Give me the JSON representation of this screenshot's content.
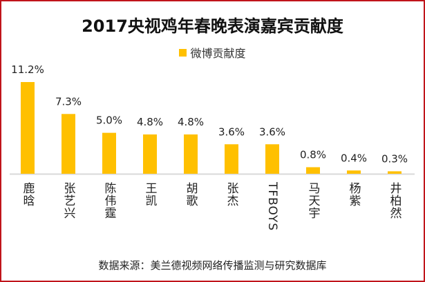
{
  "chart_data": {
    "type": "bar",
    "title": "2017央视鸡年春晚表演嘉宾贡献度",
    "categories": [
      "鹿晗",
      "张艺兴",
      "陈伟霆",
      "王凯",
      "胡歌",
      "张杰",
      "TFBOYS",
      "马天宇",
      "杨紫",
      "井柏然"
    ],
    "series": [
      {
        "name": "微博贡献度",
        "values": [
          11.2,
          7.3,
          5.0,
          4.8,
          4.8,
          3.6,
          3.6,
          0.8,
          0.4,
          0.3
        ],
        "labels": [
          "11.2%",
          "7.3%",
          "5.0%",
          "4.8%",
          "4.8%",
          "3.6%",
          "3.6%",
          "0.8%",
          "0.4%",
          "0.3%"
        ],
        "color": "#FFC000"
      }
    ],
    "ylim": [
      0,
      12
    ],
    "grid": false,
    "legend": "top",
    "unit": "%"
  },
  "source": "数据来源：美兰德视频网络传播监测与研究数据库",
  "colors": {
    "border": "#c0141b",
    "bar": "#FFC000",
    "axis": "#d9d9d9"
  }
}
